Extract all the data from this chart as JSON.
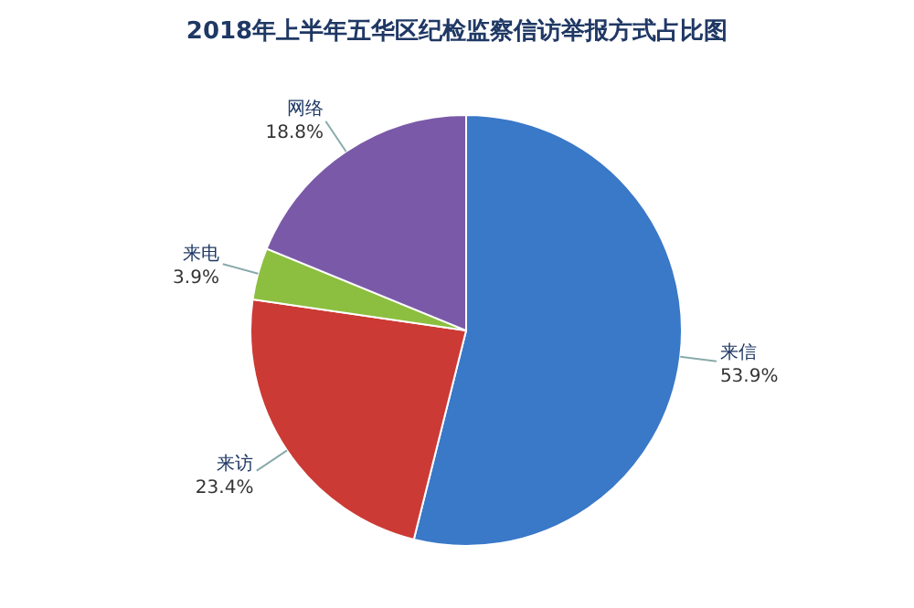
{
  "chart_data": {
    "type": "pie",
    "title": "2018年上半年五华区纪检监察信访举报方式占比图",
    "categories": [
      "来信",
      "来访",
      "来电",
      "网络"
    ],
    "values": [
      53.9,
      23.4,
      3.9,
      18.8
    ],
    "value_labels": [
      "53.9%",
      "23.4%",
      "3.9%",
      "18.8%"
    ],
    "colors": [
      "#3a78c8",
      "#cc3a35",
      "#8cbf3f",
      "#7a5aa8"
    ]
  }
}
